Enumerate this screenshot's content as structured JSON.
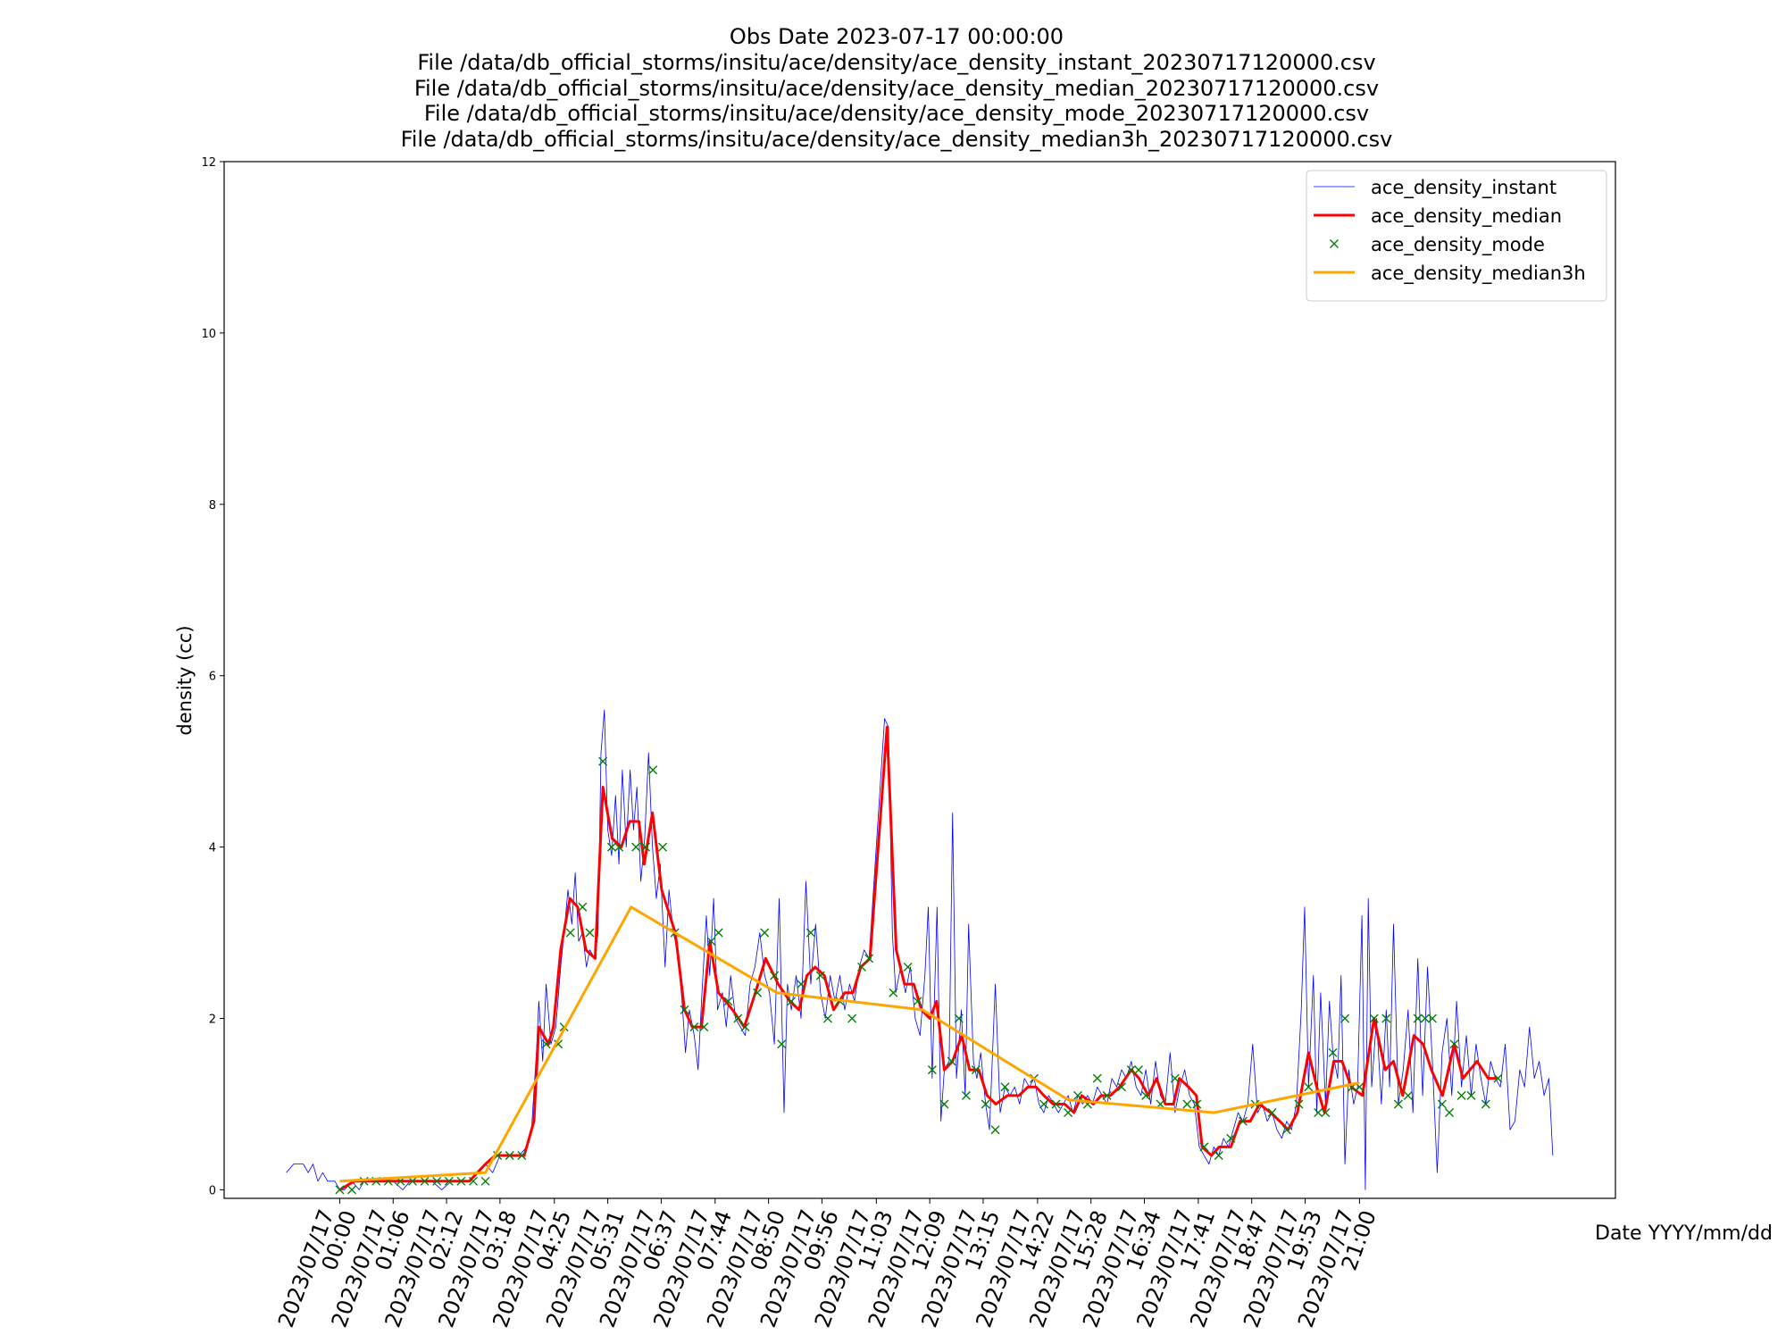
{
  "chart_data": {
    "type": "line",
    "title": [
      "Obs Date 2023-07-17 00:00:00",
      "File /data/db_official_storms/insitu/ace/density/ace_density_instant_20230717120000.csv",
      "File /data/db_official_storms/insitu/ace/density/ace_density_median_20230717120000.csv",
      "File /data/db_official_storms/insitu/ace/density/ace_density_mode_20230717120000.csv",
      "File /data/db_official_storms/insitu/ace/density/ace_density_median3h_20230717120000.csv"
    ],
    "x_label": "Date YYYY/mm/dd",
    "y_label": "density (cc)",
    "xlim": [
      -2.38,
      26.27
    ],
    "ylim": [
      -0.1,
      12
    ],
    "yticks": [
      0,
      2,
      4,
      6,
      8,
      10,
      12
    ],
    "xticks": [
      {
        "value": 0,
        "label": "2023/07/17 00:00"
      },
      {
        "value": 1.1,
        "label": "2023/07/17 01:06"
      },
      {
        "value": 2.2,
        "label": "2023/07/17 02:12"
      },
      {
        "value": 3.3,
        "label": "2023/07/17 03:18"
      },
      {
        "value": 4.42,
        "label": "2023/07/17 04:25"
      },
      {
        "value": 5.52,
        "label": "2023/07/17 05:31"
      },
      {
        "value": 6.62,
        "label": "2023/07/17 06:37"
      },
      {
        "value": 7.73,
        "label": "2023/07/17 07:44"
      },
      {
        "value": 8.83,
        "label": "2023/07/17 08:50"
      },
      {
        "value": 9.93,
        "label": "2023/07/17 09:56"
      },
      {
        "value": 11.05,
        "label": "2023/07/17 11:03"
      },
      {
        "value": 12.15,
        "label": "2023/07/17 12:09"
      },
      {
        "value": 13.25,
        "label": "2023/07/17 13:15"
      },
      {
        "value": 14.37,
        "label": "2023/07/17 14:22"
      },
      {
        "value": 15.47,
        "label": "2023/07/17 15:28"
      },
      {
        "value": 16.57,
        "label": "2023/07/17 16:34"
      },
      {
        "value": 17.68,
        "label": "2023/07/17 17:41"
      },
      {
        "value": 18.78,
        "label": "2023/07/17 18:47"
      },
      {
        "value": 19.88,
        "label": "2023/07/17 19:53"
      },
      {
        "value": 21,
        "label": "2023/07/17 21:00"
      }
    ],
    "grid": false,
    "legend": "upper right",
    "series": [
      {
        "name": "ace_density_instant",
        "color": "blue",
        "style": "thin-line",
        "x": [
          -1.1,
          -0.95,
          -0.75,
          -0.65,
          -0.55,
          -0.45,
          -0.35,
          -0.25,
          -0.1,
          0.0,
          0.1,
          0.25,
          0.4,
          0.5,
          0.7,
          0.9,
          1.1,
          1.3,
          1.45,
          1.7,
          1.9,
          2.1,
          2.3,
          2.5,
          2.7,
          2.85,
          3.0,
          3.15,
          3.3,
          3.5,
          3.7,
          3.85,
          3.95,
          4.05,
          4.1,
          4.18,
          4.25,
          4.35,
          4.45,
          4.55,
          4.62,
          4.7,
          4.78,
          4.85,
          4.92,
          5.0,
          5.08,
          5.15,
          5.25,
          5.32,
          5.38,
          5.45,
          5.52,
          5.6,
          5.68,
          5.75,
          5.82,
          5.9,
          5.98,
          6.05,
          6.12,
          6.2,
          6.28,
          6.36,
          6.44,
          6.52,
          6.6,
          6.7,
          6.78,
          6.87,
          6.95,
          7.05,
          7.12,
          7.2,
          7.3,
          7.38,
          7.45,
          7.55,
          7.62,
          7.7,
          7.78,
          7.88,
          7.96,
          8.05,
          8.15,
          8.25,
          8.35,
          8.45,
          8.55,
          8.65,
          8.75,
          8.85,
          8.95,
          9.05,
          9.15,
          9.22,
          9.3,
          9.4,
          9.5,
          9.6,
          9.7,
          9.8,
          9.9,
          10.0,
          10.1,
          10.2,
          10.3,
          10.4,
          10.5,
          10.6,
          10.7,
          10.8,
          10.9,
          11.22,
          11.3,
          11.38,
          11.45,
          11.55,
          11.65,
          11.75,
          11.85,
          11.95,
          12.05,
          12.12,
          12.2,
          12.3,
          12.38,
          12.45,
          12.55,
          12.62,
          12.7,
          12.8,
          12.88,
          12.95,
          13.05,
          13.12,
          13.2,
          13.3,
          13.38,
          13.5,
          13.6,
          13.7,
          13.8,
          13.9,
          14.0,
          14.1,
          14.2,
          14.3,
          14.4,
          14.5,
          14.6,
          14.7,
          14.8,
          14.9,
          15.0,
          15.1,
          15.2,
          15.3,
          15.4,
          15.5,
          15.6,
          15.7,
          15.8,
          15.9,
          16.0,
          16.1,
          16.2,
          16.3,
          16.4,
          16.5,
          16.6,
          16.7,
          16.8,
          16.9,
          17.0,
          17.1,
          17.2,
          17.3,
          17.4,
          17.5,
          17.6,
          17.7,
          17.8,
          17.9,
          18.0,
          18.1,
          18.2,
          18.3,
          18.4,
          18.5,
          18.6,
          18.7,
          18.8,
          18.9,
          19.0,
          19.1,
          19.2,
          19.3,
          19.4,
          19.5,
          19.6,
          19.7,
          19.8,
          19.87,
          19.95,
          20.05,
          20.12,
          20.2,
          20.3,
          20.38,
          20.45,
          20.55,
          20.62,
          20.7,
          20.78,
          20.88,
          20.96,
          21.05,
          21.12,
          21.18,
          21.25,
          21.35,
          21.45,
          21.55,
          21.62,
          21.7,
          21.8,
          21.9,
          22.0,
          22.1,
          22.2,
          22.3,
          22.4,
          22.5,
          22.6,
          22.7,
          22.8,
          22.9,
          23.0,
          23.1,
          23.2,
          23.3,
          23.4,
          23.5,
          23.6,
          23.7,
          23.8,
          23.9,
          24.0,
          24.1,
          24.2,
          24.3,
          24.4,
          24.5,
          24.6,
          24.7,
          24.8,
          24.9,
          24.98
        ],
        "values": [
          0.2,
          0.3,
          0.3,
          0.2,
          0.3,
          0.1,
          0.2,
          0.1,
          0.1,
          0.0,
          0.0,
          0.1,
          0.0,
          0.1,
          0.1,
          0.1,
          0.1,
          0.0,
          0.1,
          0.1,
          0.1,
          0.0,
          0.1,
          0.1,
          0.1,
          0.2,
          0.3,
          0.2,
          0.4,
          0.4,
          0.4,
          0.5,
          0.7,
          1.6,
          2.2,
          1.5,
          2.4,
          1.7,
          1.9,
          2.6,
          3.0,
          3.5,
          3.1,
          3.7,
          2.9,
          3.0,
          2.6,
          2.8,
          2.7,
          3.0,
          5.1,
          5.6,
          4.2,
          3.9,
          4.6,
          3.8,
          4.9,
          4.0,
          4.9,
          4.2,
          4.7,
          3.6,
          4.1,
          5.1,
          4.0,
          3.4,
          3.8,
          2.6,
          3.5,
          3.0,
          2.8,
          2.2,
          1.6,
          2.1,
          1.8,
          1.4,
          2.2,
          3.2,
          2.5,
          3.4,
          2.1,
          2.3,
          1.9,
          2.5,
          2.0,
          1.9,
          1.8,
          2.4,
          2.6,
          3.0,
          2.5,
          2.3,
          1.7,
          3.4,
          0.9,
          2.4,
          2.1,
          2.5,
          2.0,
          3.6,
          2.4,
          3.1,
          2.3,
          2.0,
          2.5,
          2.2,
          2.5,
          2.1,
          2.4,
          2.2,
          2.6,
          2.8,
          2.7,
          5.5,
          5.4,
          3.0,
          2.3,
          2.6,
          2.3,
          2.6,
          2.0,
          1.8,
          2.5,
          3.3,
          1.3,
          3.3,
          0.8,
          1.4,
          1.5,
          4.4,
          1.3,
          2.1,
          1.1,
          3.1,
          1.5,
          1.3,
          1.6,
          1.0,
          0.7,
          2.4,
          0.9,
          1.2,
          1.1,
          1.2,
          1.0,
          1.3,
          1.2,
          1.3,
          1.0,
          0.9,
          1.1,
          1.0,
          0.9,
          1.0,
          1.1,
          0.9,
          1.1,
          1.0,
          1.1,
          1.0,
          1.2,
          1.1,
          1.0,
          1.3,
          1.2,
          1.4,
          1.3,
          1.5,
          1.2,
          1.1,
          1.4,
          1.0,
          1.5,
          1.1,
          1.0,
          1.6,
          0.9,
          1.2,
          1.4,
          1.1,
          1.0,
          0.5,
          0.4,
          0.3,
          0.5,
          0.4,
          0.6,
          0.5,
          0.7,
          0.9,
          0.8,
          1.0,
          1.7,
          0.9,
          1.0,
          0.8,
          0.9,
          0.7,
          0.6,
          0.8,
          0.7,
          1.0,
          2.1,
          3.3,
          1.2,
          2.5,
          0.9,
          2.3,
          1.0,
          2.2,
          1.6,
          1.3,
          2.5,
          0.3,
          1.4,
          1.0,
          1.2,
          3.2,
          0.0,
          3.4,
          1.2,
          2.0,
          1.0,
          2.1,
          1.2,
          3.1,
          1.0,
          1.4,
          2.1,
          0.9,
          2.7,
          1.1,
          2.6,
          1.5,
          0.2,
          1.6,
          2.0,
          1.1,
          2.2,
          1.2,
          1.8,
          1.1,
          1.7,
          1.3,
          1.0,
          1.5,
          1.3,
          1.2,
          1.7,
          0.7,
          0.8,
          1.4,
          1.2,
          1.9,
          1.3,
          1.5,
          1.1,
          1.3,
          0.4
        ]
      },
      {
        "name": "ace_density_median",
        "color": "red",
        "style": "line",
        "x": [
          0,
          0.3,
          2.67,
          3.0,
          3.2,
          3.8,
          4.0,
          4.1,
          4.3,
          4.4,
          4.55,
          4.74,
          4.9,
          5.07,
          5.26,
          5.42,
          5.61,
          5.8,
          5.97,
          6.16,
          6.27,
          6.44,
          6.63,
          6.91,
          7.1,
          7.26,
          7.45,
          7.62,
          7.8,
          8.09,
          8.33,
          8.56,
          8.77,
          9.03,
          9.27,
          9.46,
          9.62,
          9.79,
          9.98,
          10.17,
          10.4,
          10.57,
          10.73,
          10.92,
          11.27,
          11.46,
          11.63,
          11.82,
          11.98,
          12.15,
          12.29,
          12.45,
          12.62,
          12.81,
          12.97,
          13.16,
          13.33,
          13.51,
          13.75,
          13.99,
          14.17,
          14.34,
          14.5,
          14.69,
          14.93,
          15.12,
          15.28,
          15.52,
          15.68,
          15.87,
          16.06,
          16.3,
          16.46,
          16.65,
          16.82,
          17.0,
          17.17,
          17.29,
          17.48,
          17.64,
          17.76,
          17.95,
          18.11,
          18.35,
          18.54,
          18.75,
          18.94,
          19.17,
          19.36,
          19.53,
          19.72,
          19.95,
          20.12,
          20.28,
          20.47,
          20.64,
          20.83,
          21.06,
          21.3,
          21.53,
          21.7,
          21.89,
          22.12,
          22.31,
          22.48,
          22.71,
          22.95,
          23.13,
          23.42,
          23.65,
          23.84
        ],
        "values": [
          0.0,
          0.1,
          0.1,
          0.3,
          0.4,
          0.4,
          0.8,
          1.9,
          1.7,
          1.9,
          2.8,
          3.4,
          3.3,
          2.8,
          2.7,
          4.7,
          4.1,
          4.0,
          4.3,
          4.3,
          3.8,
          4.4,
          3.5,
          3.0,
          2.1,
          1.9,
          1.9,
          2.9,
          2.3,
          2.1,
          1.9,
          2.3,
          2.7,
          2.4,
          2.2,
          2.1,
          2.5,
          2.6,
          2.5,
          2.1,
          2.3,
          2.3,
          2.6,
          2.7,
          5.4,
          2.8,
          2.4,
          2.4,
          2.1,
          2.0,
          2.2,
          1.4,
          1.5,
          1.8,
          1.4,
          1.4,
          1.1,
          1.0,
          1.1,
          1.1,
          1.2,
          1.2,
          1.1,
          1.0,
          1.0,
          0.9,
          1.1,
          1.0,
          1.1,
          1.1,
          1.2,
          1.4,
          1.3,
          1.1,
          1.3,
          1.0,
          1.0,
          1.3,
          1.2,
          1.1,
          0.5,
          0.4,
          0.5,
          0.5,
          0.8,
          0.8,
          1.0,
          0.9,
          0.8,
          0.7,
          0.9,
          1.6,
          1.2,
          0.9,
          1.5,
          1.5,
          1.2,
          1.1,
          2.0,
          1.4,
          1.5,
          1.1,
          1.8,
          1.7,
          1.4,
          1.1,
          1.7,
          1.3,
          1.5,
          1.3,
          1.3
        ]
      },
      {
        "name": "ace_density_mode",
        "color": "green",
        "style": "markers",
        "x": [
          0.0,
          0.25,
          0.5,
          0.75,
          1.0,
          1.25,
          1.5,
          1.75,
          2.0,
          2.25,
          2.5,
          2.75,
          3.0,
          3.25,
          3.5,
          3.75,
          4.25,
          4.5,
          4.62,
          4.75,
          5.0,
          5.15,
          5.42,
          5.6,
          5.75,
          6.1,
          6.3,
          6.45,
          6.65,
          6.9,
          7.1,
          7.3,
          7.5,
          7.65,
          7.8,
          8.0,
          8.2,
          8.35,
          8.6,
          8.75,
          8.95,
          9.1,
          9.3,
          9.5,
          9.7,
          9.9,
          10.05,
          10.3,
          10.55,
          10.75,
          10.9,
          11.4,
          11.7,
          11.9,
          12.2,
          12.45,
          12.6,
          12.75,
          12.9,
          13.1,
          13.3,
          13.5,
          13.7,
          14.3,
          14.5,
          14.75,
          15.0,
          15.2,
          15.4,
          15.6,
          15.8,
          16.1,
          16.3,
          16.45,
          16.6,
          16.9,
          17.2,
          17.45,
          17.65,
          17.8,
          18.1,
          18.35,
          18.6,
          18.85,
          19.2,
          19.5,
          19.75,
          19.95,
          20.15,
          20.3,
          20.45,
          20.7,
          20.85,
          21.0,
          21.3,
          21.55,
          21.8,
          22.0,
          22.2,
          22.35,
          22.5,
          22.7,
          22.85,
          22.95,
          23.1,
          23.3,
          23.6,
          23.85
        ],
        "values": [
          0.0,
          0.0,
          0.1,
          0.1,
          0.1,
          0.1,
          0.1,
          0.1,
          0.1,
          0.1,
          0.1,
          0.1,
          0.1,
          0.4,
          0.4,
          0.4,
          1.7,
          1.7,
          1.9,
          3.0,
          3.3,
          3.0,
          5.0,
          4.0,
          4.0,
          4.0,
          4.0,
          4.9,
          4.0,
          3.0,
          2.1,
          1.9,
          1.9,
          2.9,
          3.0,
          2.2,
          2.0,
          1.9,
          2.3,
          3.0,
          2.5,
          1.7,
          2.2,
          2.4,
          3.0,
          2.5,
          2.0,
          2.2,
          2.0,
          2.6,
          2.7,
          2.3,
          2.6,
          2.2,
          1.4,
          1.0,
          1.5,
          2.0,
          1.1,
          1.4,
          1.0,
          0.7,
          1.2,
          1.3,
          1.0,
          1.0,
          0.9,
          1.1,
          1.0,
          1.3,
          1.1,
          1.2,
          1.4,
          1.4,
          1.1,
          1.0,
          1.3,
          1.0,
          1.0,
          0.5,
          0.4,
          0.6,
          0.8,
          1.0,
          0.9,
          0.7,
          1.0,
          1.2,
          0.9,
          0.9,
          1.6,
          2.0,
          1.2,
          1.2,
          2.0,
          2.0,
          1.0,
          1.1,
          2.0,
          2.0,
          2.0,
          1.0,
          0.9,
          1.7,
          1.1,
          1.1,
          1.0,
          1.3
        ]
      },
      {
        "name": "ace_density_median3h",
        "color": "orange",
        "style": "line",
        "x": [
          0,
          3,
          6,
          9,
          12,
          15,
          18,
          21
        ],
        "values": [
          0.1,
          0.2,
          3.3,
          2.3,
          2.1,
          1.05,
          0.9,
          1.25
        ]
      }
    ]
  }
}
